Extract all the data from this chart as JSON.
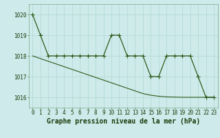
{
  "hours": [
    0,
    1,
    2,
    3,
    4,
    5,
    6,
    7,
    8,
    9,
    10,
    11,
    12,
    13,
    14,
    15,
    16,
    17,
    18,
    19,
    20,
    21,
    22,
    23
  ],
  "series1": [
    1020,
    1019,
    1018,
    1018,
    1018,
    1018,
    1018,
    1018,
    1018,
    1018,
    1019,
    1019,
    1018,
    1018,
    1018,
    1017,
    1017,
    1018,
    1018,
    1018,
    1018,
    1017,
    1016,
    1016
  ],
  "series2": [
    1018.0,
    1017.87,
    1017.74,
    1017.61,
    1017.48,
    1017.35,
    1017.22,
    1017.09,
    1016.96,
    1016.83,
    1016.7,
    1016.57,
    1016.44,
    1016.31,
    1016.18,
    1016.1,
    1016.05,
    1016.02,
    1016.01,
    1016.0,
    1016.0,
    1016.0,
    1016.0,
    1016.0
  ],
  "line_color": "#2d5a1b",
  "bg_color": "#ceeaea",
  "grid_color": "#a8d4cc",
  "xlabel": "Graphe pression niveau de la mer (hPa)",
  "ylim": [
    1015.5,
    1020.5
  ],
  "yticks": [
    1016,
    1017,
    1018,
    1019,
    1020
  ],
  "xticks": [
    0,
    1,
    2,
    3,
    4,
    5,
    6,
    7,
    8,
    9,
    10,
    11,
    12,
    13,
    14,
    15,
    16,
    17,
    18,
    19,
    20,
    21,
    22,
    23
  ],
  "tick_fontsize": 5.5,
  "xlabel_fontsize": 7.0,
  "marker_size": 2.0,
  "lw1": 0.9,
  "lw2": 0.8
}
